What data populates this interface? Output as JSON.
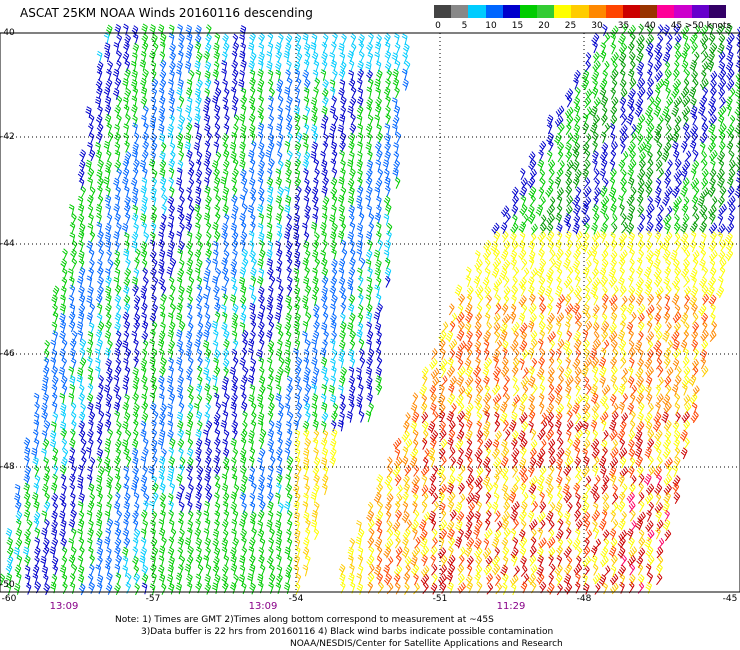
{
  "title": "ASCAT 25KM NOAA Winds 20160116 descending",
  "legend": {
    "labels": [
      "0",
      "5",
      "10",
      "15",
      "20",
      "25",
      "30",
      "35",
      "40",
      "45",
      ">50 knots"
    ],
    "colors": [
      "#444444",
      "#888888",
      "#00ccff",
      "#0066ff",
      "#0000cc",
      "#00cc00",
      "#33cc33",
      "#ffff00",
      "#ffcc00",
      "#ff8800",
      "#ff4400",
      "#cc0000",
      "#993300",
      "#ff0099",
      "#cc00cc",
      "#6600cc",
      "#330066"
    ]
  },
  "axes": {
    "lat_labels": [
      "-40",
      "-42",
      "-44",
      "-46",
      "-48",
      "-50"
    ],
    "lon_labels": [
      "-60",
      "-57",
      "-54",
      "-51",
      "-48",
      "-45"
    ]
  },
  "times": [
    "13:09",
    "13:09",
    "11:29"
  ],
  "notes": [
    "Note: 1) Times are GMT 2)Times along bottom correspond to measurement at ~45S",
    "3)Data buffer is 22 hrs from 20160116 4) Black wind barbs indicate possible contamination",
    "NOAA/NESDIS/Center for Satellite Applications and Research"
  ],
  "swath_colors": {
    "cyan": "#00ccff",
    "blue": "#0000cc",
    "mid_blue": "#0066ff",
    "green": "#00cc00",
    "dark_green": "#009900",
    "yellow": "#ffff00",
    "gold": "#ffcc00",
    "orange": "#ff8800",
    "red_orange": "#ff4400",
    "red": "#cc0000",
    "pink": "#ff0066"
  }
}
